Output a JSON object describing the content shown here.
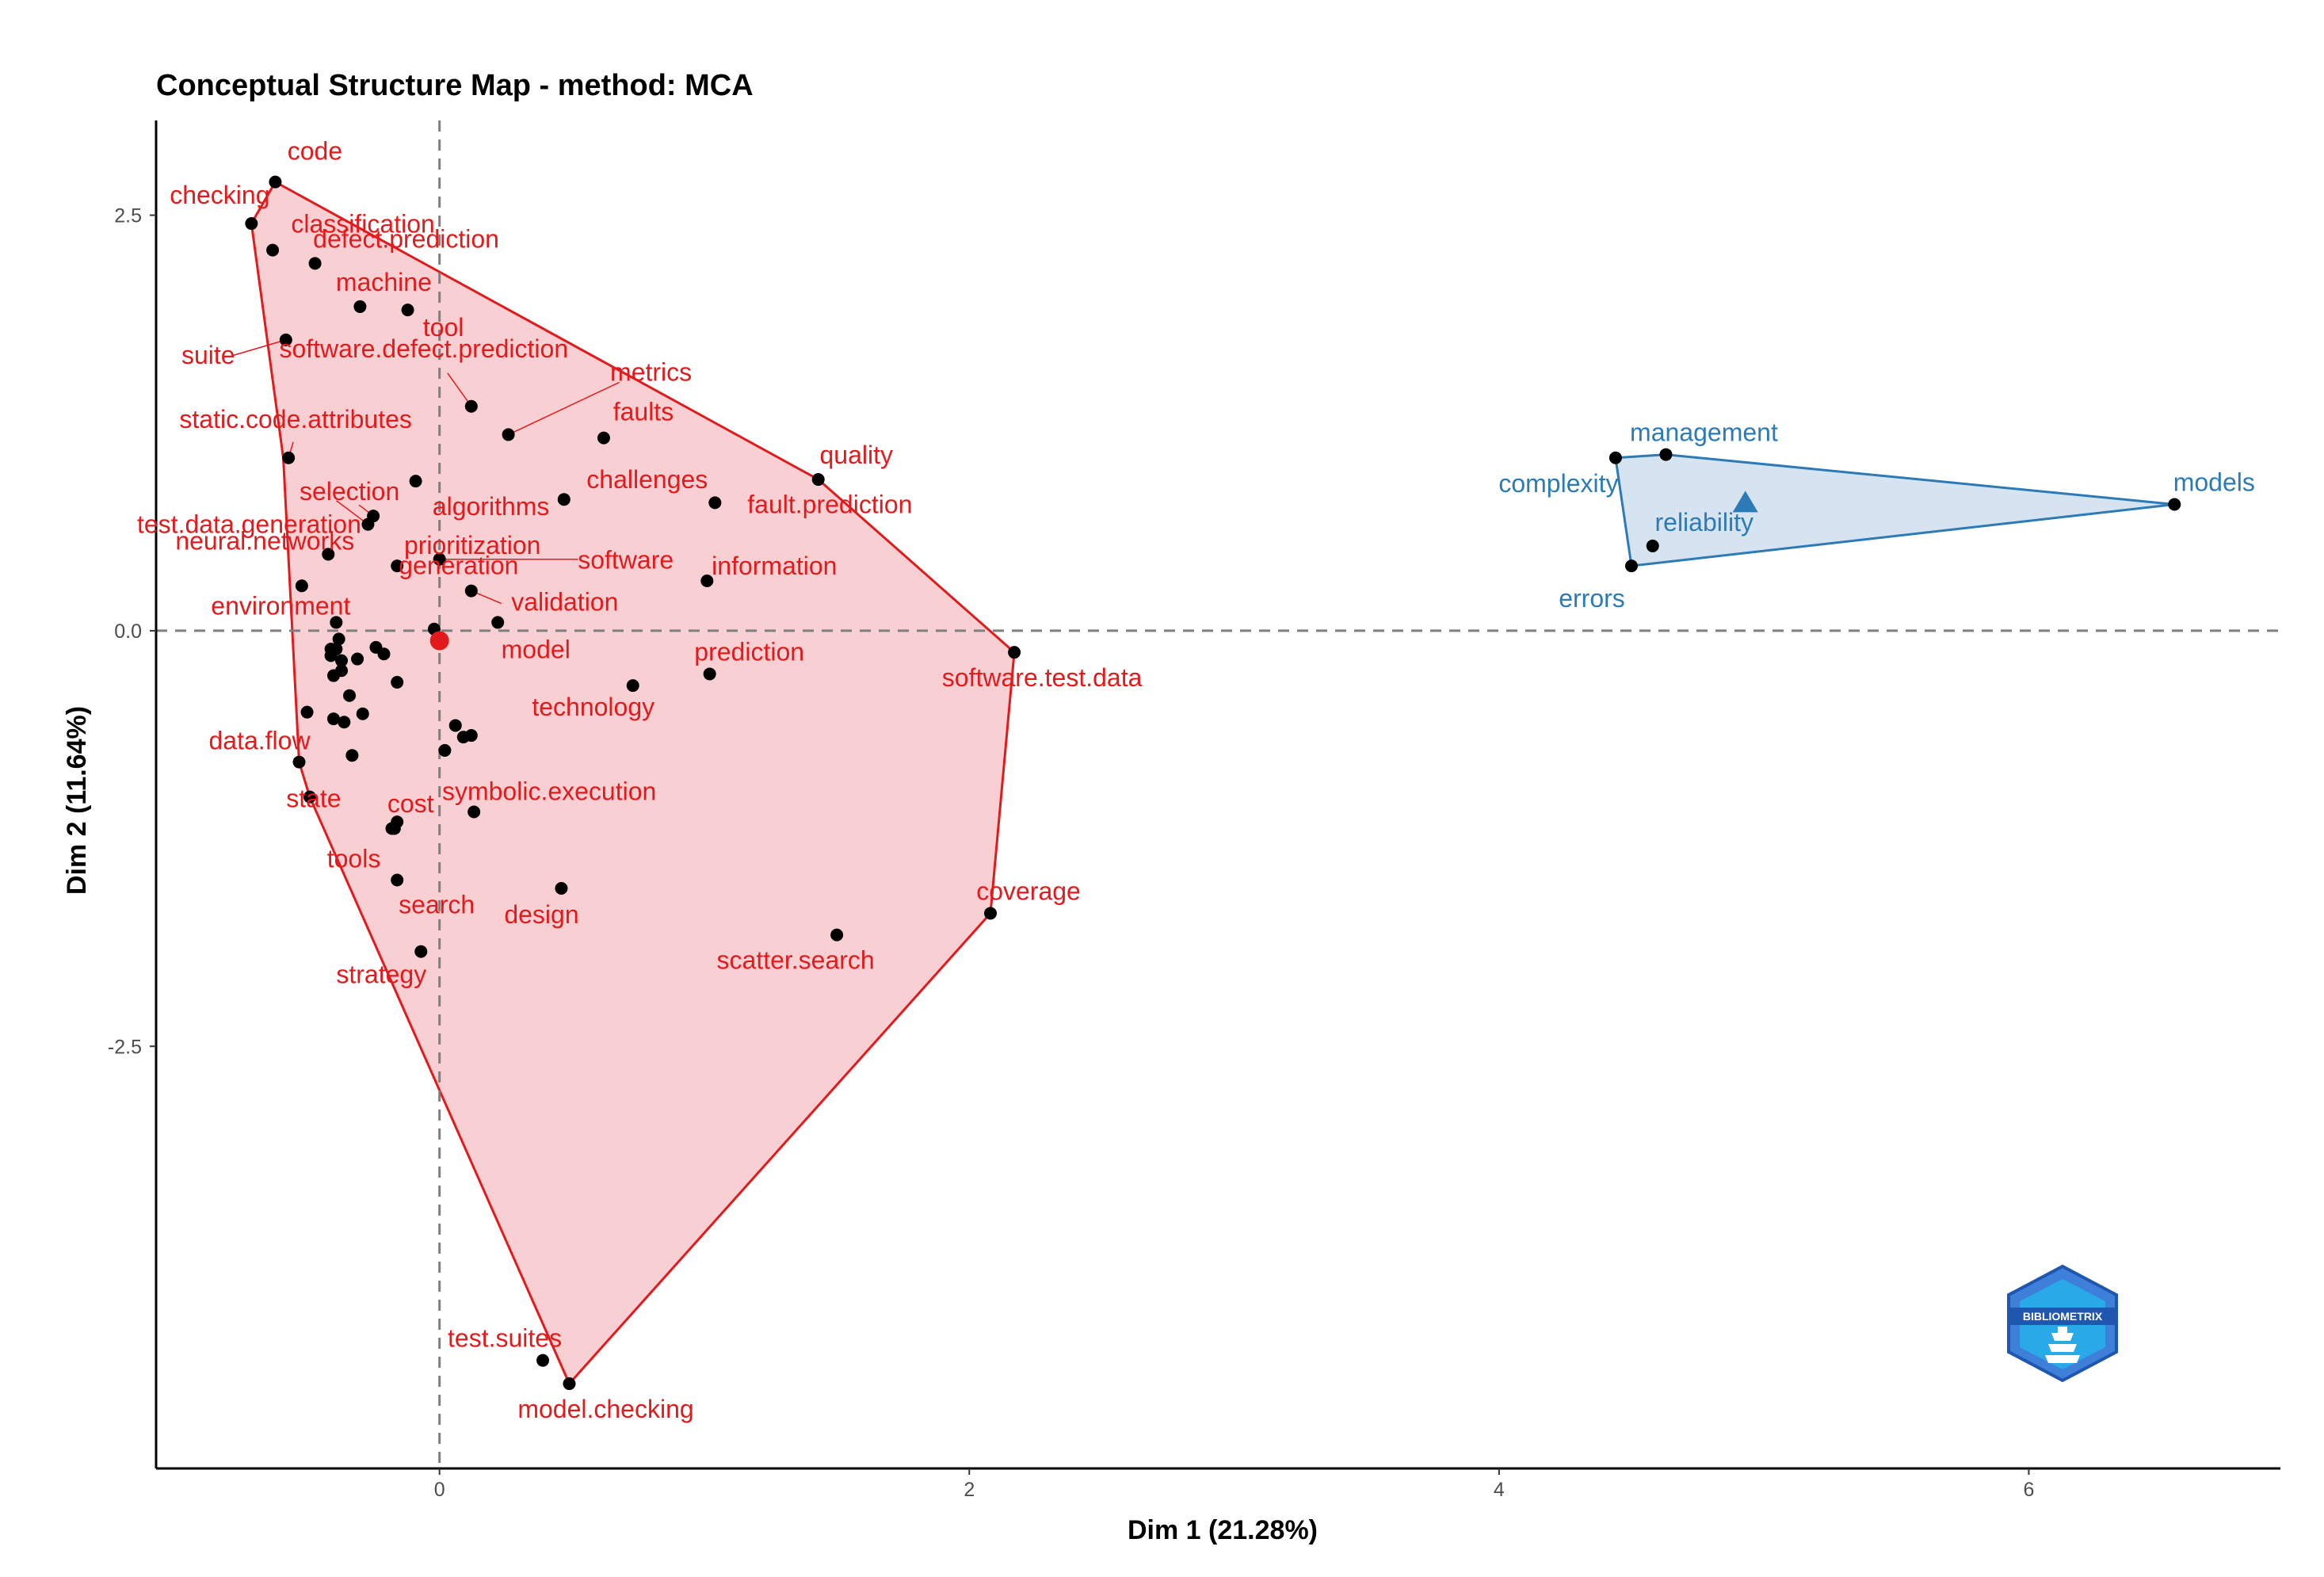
{
  "chart_data": {
    "type": "scatter",
    "title": "Conceptual Structure Map - method: MCA",
    "xlabel": "Dim 1 (21.28%)",
    "ylabel": "Dim 2 (11.64%)",
    "xlim": [
      -1.07,
      6.95
    ],
    "ylim": [
      -5.04,
      3.07
    ],
    "xticks": [
      0,
      2,
      4,
      6
    ],
    "yticks": [
      2.5,
      0.0,
      -2.5
    ],
    "xtick_labels": [
      "0",
      "2",
      "4",
      "6"
    ],
    "ytick_labels": [
      "2.5",
      "0.0",
      "-2.5"
    ],
    "reference_lines": {
      "x": 0,
      "y": 0,
      "style": "dashed"
    },
    "colors": {
      "cluster1": "#e31a1c",
      "cluster2": "#2c7bb6"
    },
    "clusters": [
      {
        "color": "#e31a1c",
        "fill": "#f8d0d3",
        "centroid": [
          0.0,
          -0.06
        ],
        "centroid_shape": "circle",
        "hull": [
          [
            -0.62,
            2.7
          ],
          [
            -0.71,
            2.45
          ],
          [
            -0.59,
            1.04
          ],
          [
            -0.53,
            -0.79
          ],
          [
            -0.49,
            -1.0
          ],
          [
            0.49,
            -4.53
          ],
          [
            2.08,
            -1.7
          ],
          [
            2.17,
            -0.13
          ],
          [
            1.43,
            0.91
          ]
        ],
        "points": [
          {
            "label": "code",
            "x": -0.62,
            "y": 2.7
          },
          {
            "label": "checking",
            "x": -0.71,
            "y": 2.45
          },
          {
            "label": "defect.prediction",
            "x": -0.47,
            "y": 2.21
          },
          {
            "label": "machine",
            "x": -0.3,
            "y": 1.95
          },
          {
            "label": "classification",
            "x": -0.63,
            "y": 2.29
          },
          {
            "label": "tool",
            "x": -0.12,
            "y": 1.93
          },
          {
            "label": "suite",
            "x": -0.58,
            "y": 1.75
          },
          {
            "label": "software.defect.prediction",
            "x": 0.12,
            "y": 1.35
          },
          {
            "label": "metrics",
            "x": 0.26,
            "y": 1.18
          },
          {
            "label": "static.code.attributes",
            "x": -0.57,
            "y": 1.04
          },
          {
            "label": "faults",
            "x": 0.62,
            "y": 1.16
          },
          {
            "label": "algorithms",
            "x": -0.09,
            "y": 0.9
          },
          {
            "label": "quality",
            "x": 1.43,
            "y": 0.91
          },
          {
            "label": "challenges",
            "x": 0.47,
            "y": 0.79
          },
          {
            "label": "selection",
            "x": -0.25,
            "y": 0.69
          },
          {
            "label": "fault.prediction",
            "x": 1.04,
            "y": 0.77
          },
          {
            "label": "test.data.generation",
            "x": -0.27,
            "y": 0.64
          },
          {
            "label": "prioritization",
            "x": -0.16,
            "y": 0.39
          },
          {
            "label": "neural.networks",
            "x": -0.42,
            "y": 0.46
          },
          {
            "label": "software",
            "x": 0.0,
            "y": 0.43
          },
          {
            "label": "information",
            "x": 1.01,
            "y": 0.3
          },
          {
            "label": "generation",
            "x": -0.52,
            "y": 0.27
          },
          {
            "label": "validation",
            "x": 0.12,
            "y": 0.24
          },
          {
            "label": "environment",
            "x": -0.39,
            "y": 0.05
          },
          {
            "label": "model",
            "x": 0.22,
            "y": 0.05
          },
          {
            "label": "prediction",
            "x": 1.02,
            "y": -0.26
          },
          {
            "label": "software.test.data",
            "x": 2.17,
            "y": -0.13
          },
          {
            "label": "technology",
            "x": 0.73,
            "y": -0.33
          },
          {
            "label": "data.flow",
            "x": -0.53,
            "y": -0.79
          },
          {
            "label": "state",
            "x": -0.49,
            "y": -1.0
          },
          {
            "label": "cost",
            "x": -0.16,
            "y": -1.15
          },
          {
            "label": "symbolic.execution",
            "x": 0.13,
            "y": -1.09
          },
          {
            "label": "tools",
            "x": -0.18,
            "y": -1.19
          },
          {
            "label": "coverage",
            "x": 2.08,
            "y": -1.7
          },
          {
            "label": "search",
            "x": -0.16,
            "y": -1.5
          },
          {
            "label": "design",
            "x": 0.46,
            "y": -1.55
          },
          {
            "label": "scatter.search",
            "x": 1.5,
            "y": -1.83
          },
          {
            "label": "strategy",
            "x": -0.07,
            "y": -1.93
          },
          {
            "label": "test.suites",
            "x": 0.39,
            "y": -4.39
          },
          {
            "label": "model.checking",
            "x": 0.49,
            "y": -4.53
          },
          {
            "label": "",
            "x": -0.02,
            "y": 0.01
          },
          {
            "label": "",
            "x": -0.39,
            "y": -0.11
          },
          {
            "label": "",
            "x": -0.41,
            "y": -0.15
          },
          {
            "label": "",
            "x": -0.37,
            "y": -0.18
          },
          {
            "label": "",
            "x": -0.31,
            "y": -0.17
          },
          {
            "label": "",
            "x": -0.24,
            "y": -0.1
          },
          {
            "label": "",
            "x": -0.38,
            "y": -0.05
          },
          {
            "label": "",
            "x": -0.41,
            "y": -0.11
          },
          {
            "label": "",
            "x": -0.21,
            "y": -0.14
          },
          {
            "label": "",
            "x": -0.4,
            "y": -0.27
          },
          {
            "label": "",
            "x": -0.37,
            "y": -0.24
          },
          {
            "label": "",
            "x": -0.16,
            "y": -0.31
          },
          {
            "label": "",
            "x": -0.34,
            "y": -0.39
          },
          {
            "label": "",
            "x": -0.29,
            "y": -0.5
          },
          {
            "label": "",
            "x": -0.4,
            "y": -0.53
          },
          {
            "label": "",
            "x": -0.36,
            "y": -0.55
          },
          {
            "label": "",
            "x": -0.5,
            "y": -0.49
          },
          {
            "label": "",
            "x": -0.33,
            "y": -0.75
          },
          {
            "label": "",
            "x": 0.06,
            "y": -0.57
          },
          {
            "label": "",
            "x": 0.09,
            "y": -0.64
          },
          {
            "label": "",
            "x": 0.12,
            "y": -0.63
          },
          {
            "label": "",
            "x": 0.02,
            "y": -0.72
          },
          {
            "label": "",
            "x": -0.17,
            "y": -1.19
          }
        ]
      },
      {
        "color": "#2c7bb6",
        "fill": "#d6e3f0",
        "centroid": [
          4.93,
          0.77
        ],
        "centroid_shape": "triangle",
        "hull": [
          [
            4.44,
            1.04
          ],
          [
            4.63,
            1.06
          ],
          [
            6.55,
            0.76
          ],
          [
            4.5,
            0.39
          ]
        ],
        "points": [
          {
            "label": "management",
            "x": 4.63,
            "y": 1.06
          },
          {
            "label": "complexity",
            "x": 4.44,
            "y": 1.04
          },
          {
            "label": "models",
            "x": 6.55,
            "y": 0.76
          },
          {
            "label": "reliability",
            "x": 4.58,
            "y": 0.51
          },
          {
            "label": "errors",
            "x": 4.5,
            "y": 0.39
          }
        ]
      }
    ],
    "watermark": "BIBLIOMETRIX"
  }
}
